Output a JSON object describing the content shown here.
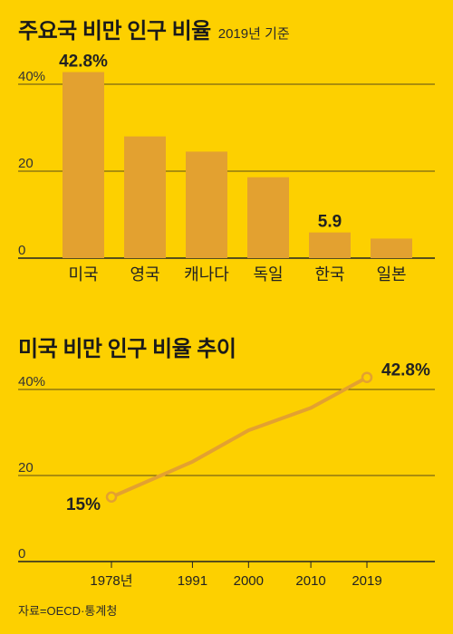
{
  "bar_section": {
    "title": "주요국 비만 인구 비율",
    "note": "2019년 기준"
  },
  "line_section": {
    "title": "미국 비만 인구 비율 추이"
  },
  "source": "자료=OECD·통계청",
  "colors": {
    "background": "#FDD000",
    "bar": "#E3A130",
    "line": "#E3A130",
    "grid": "#222222",
    "marker_fill": "#FDD000"
  },
  "chart_data": [
    {
      "type": "bar",
      "title": "주요국 비만 인구 비율",
      "subtitle": "2019년 기준",
      "categories": [
        "미국",
        "영국",
        "캐나다",
        "독일",
        "한국",
        "일본"
      ],
      "values": [
        42.8,
        28.0,
        24.5,
        18.6,
        5.9,
        4.5
      ],
      "value_labels": [
        "42.8%",
        "",
        "",
        "",
        "5.9",
        ""
      ],
      "y_ticks": [
        "0",
        "20",
        "40%"
      ],
      "y_tick_values": [
        0,
        20,
        40
      ],
      "ylim": [
        0,
        45
      ],
      "grid": true
    },
    {
      "type": "line",
      "title": "미국 비만 인구 비율 추이",
      "x": [
        "1978년",
        "1991",
        "2000",
        "2010",
        "2019"
      ],
      "x_values": [
        1978,
        1991,
        2000,
        2010,
        2019
      ],
      "y": [
        15.0,
        23.2,
        30.5,
        35.7,
        42.8
      ],
      "point_labels": [
        "15%",
        "",
        "",
        "",
        "42.8%"
      ],
      "y_ticks": [
        "0",
        "20",
        "40%"
      ],
      "y_tick_values": [
        0,
        20,
        40
      ],
      "ylim": [
        0,
        45
      ],
      "grid": true
    }
  ]
}
